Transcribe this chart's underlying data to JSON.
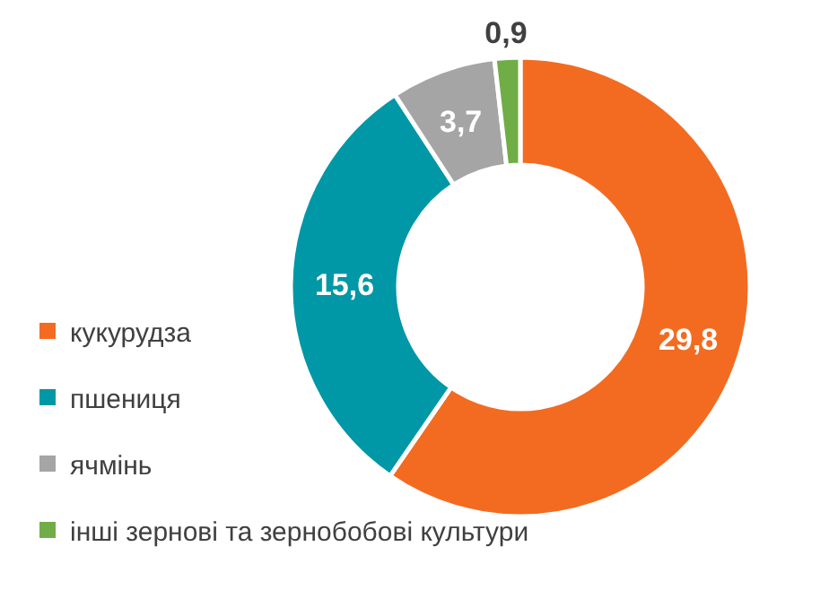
{
  "chart_data": {
    "type": "donut",
    "categories": [
      "кукурудза",
      "пшениця",
      "ячмінь",
      "інші зернові та зернобобові культури"
    ],
    "values": [
      29.8,
      15.6,
      3.7,
      0.9
    ],
    "colors": [
      "#f36b21",
      "#0097a7",
      "#a5a5a5",
      "#70ad47"
    ],
    "value_labels": [
      "29,8",
      "15,6",
      "3,7",
      "0,9"
    ],
    "legend": "bottom left"
  }
}
